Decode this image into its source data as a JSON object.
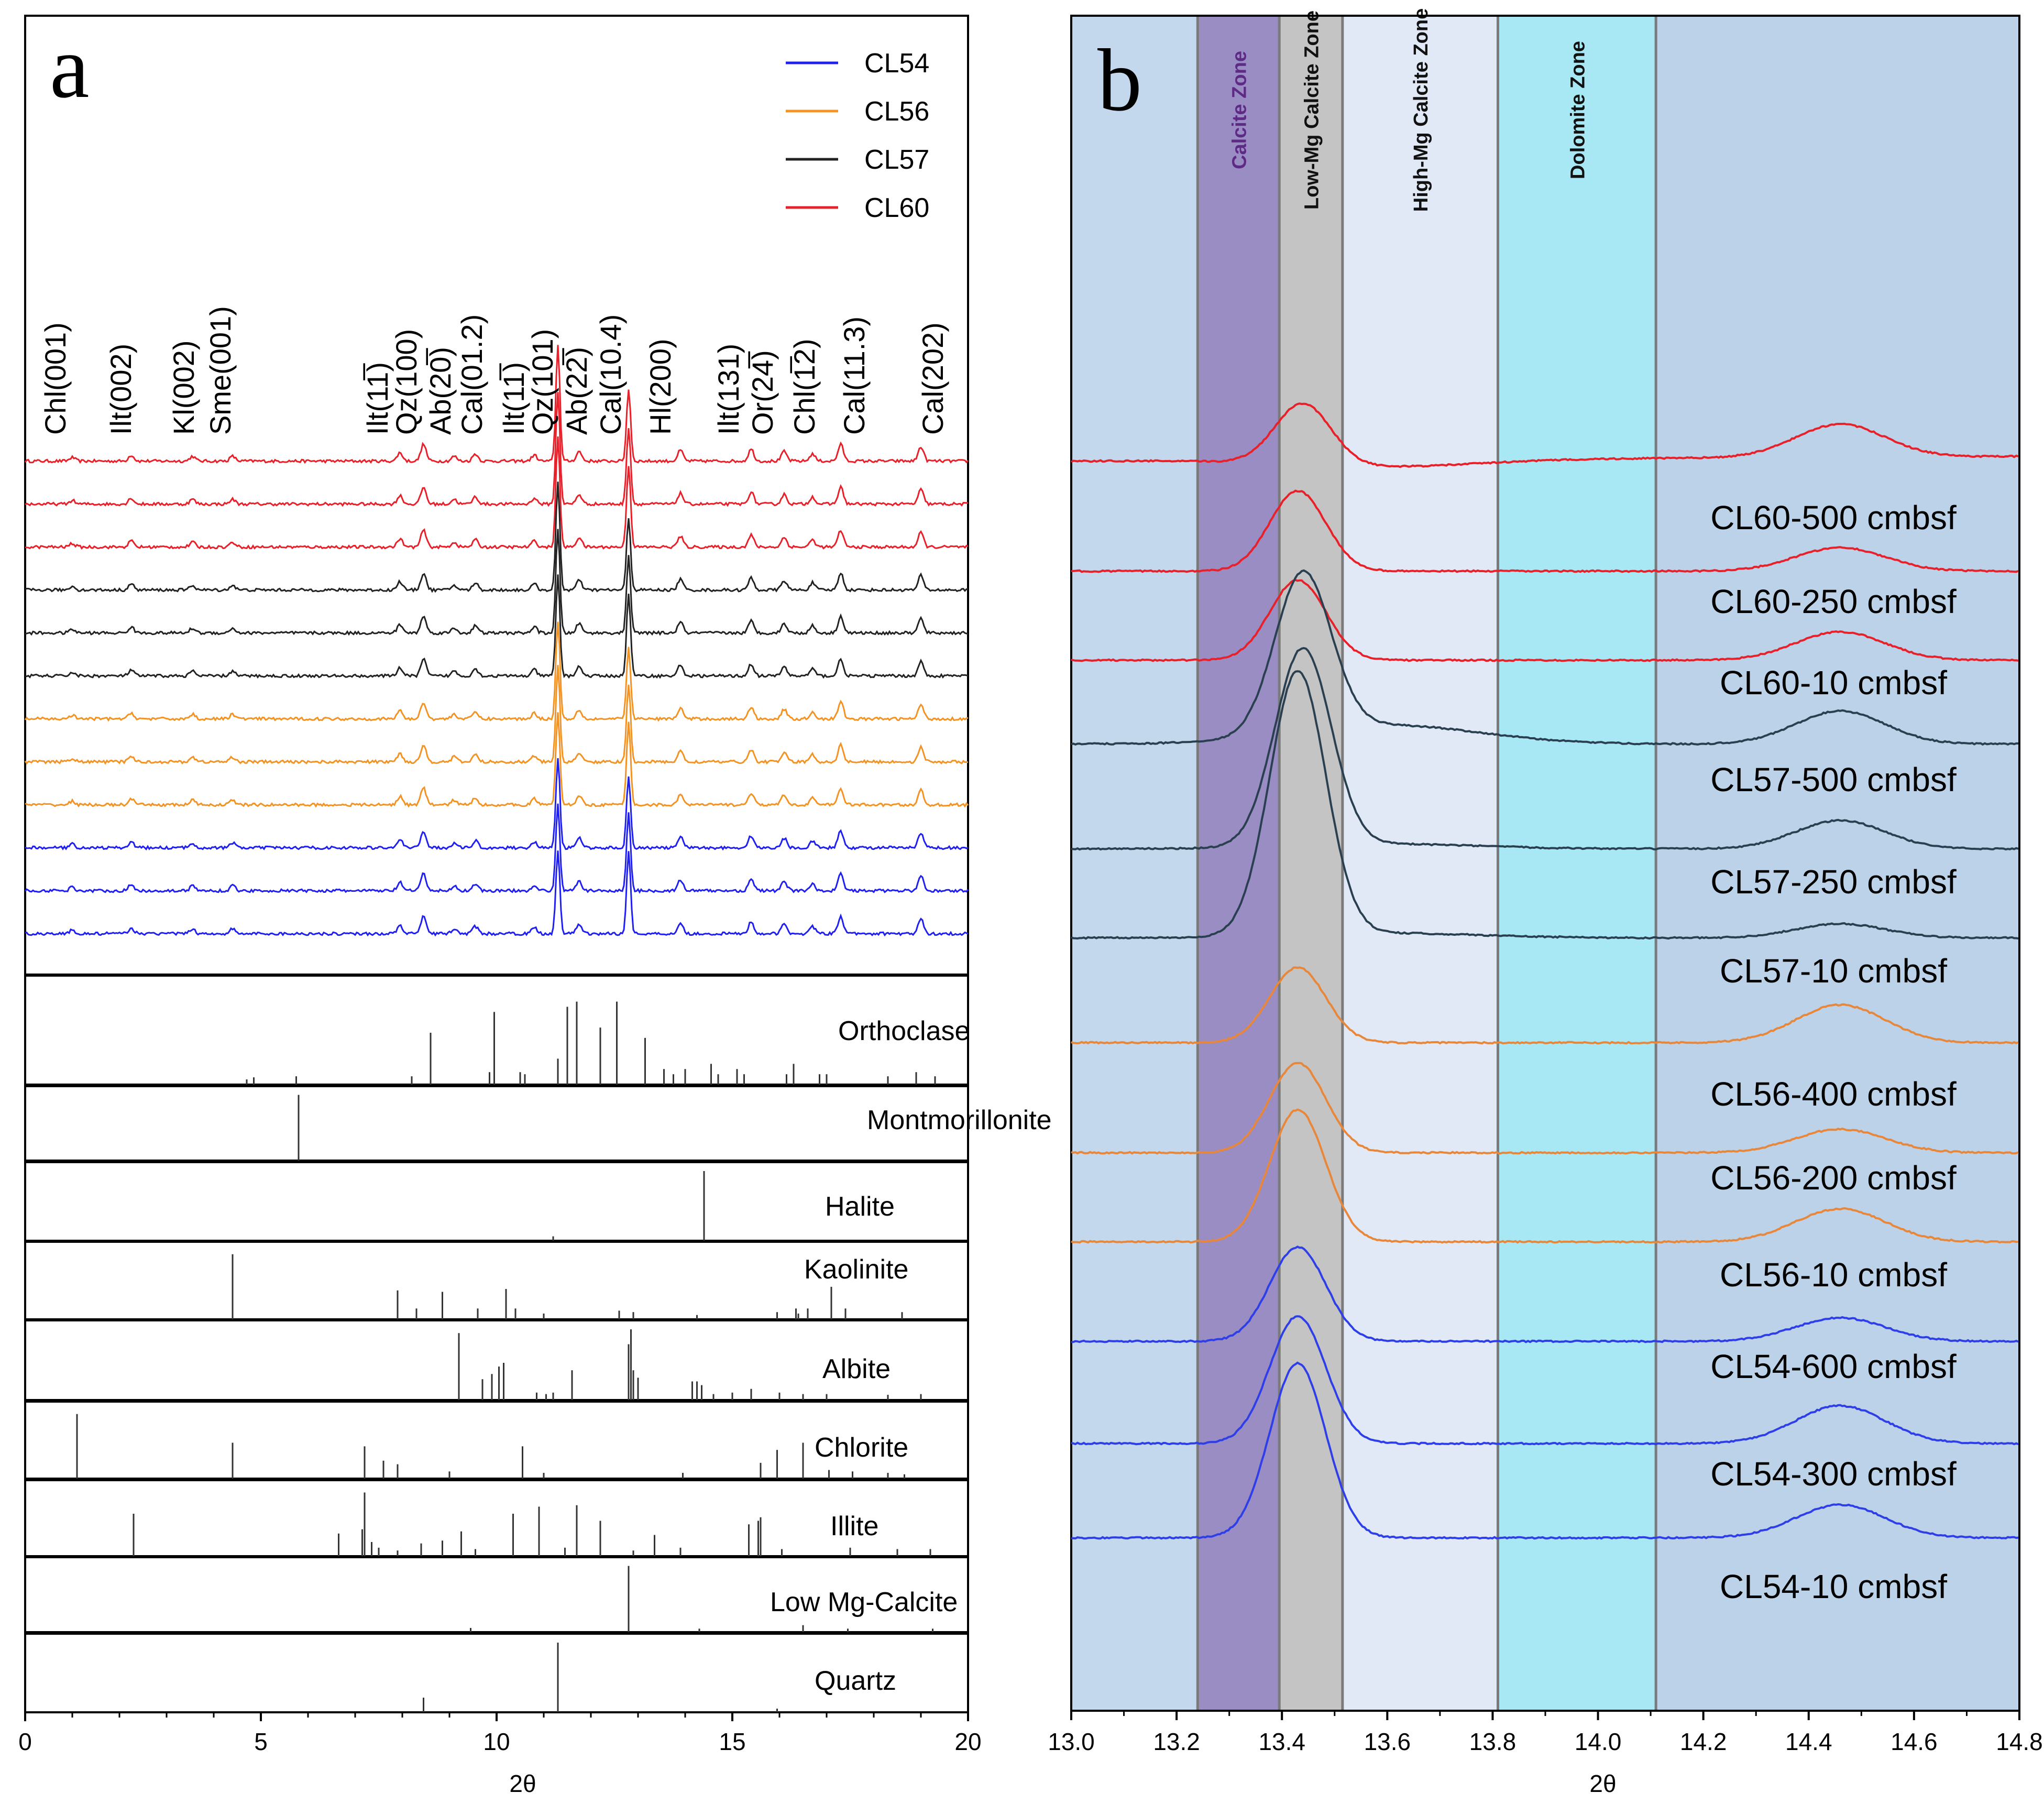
{
  "chart_data": [
    {
      "panel": "a",
      "type": "line",
      "xlabel": "2θ",
      "xlim": [
        0,
        20
      ],
      "xticks": [
        0,
        5,
        10,
        15,
        20
      ],
      "legend": {
        "position": "top-right",
        "entries": [
          {
            "name": "CL54",
            "color": "#1f1fef"
          },
          {
            "name": "CL56",
            "color": "#f39323"
          },
          {
            "name": "CL57",
            "color": "#222222"
          },
          {
            "name": "CL60",
            "color": "#e8202a"
          }
        ]
      },
      "series": [
        {
          "name": "CL60",
          "color": "#e8202a",
          "count": 3
        },
        {
          "name": "CL57",
          "color": "#222222",
          "count": 3
        },
        {
          "name": "CL56",
          "color": "#f39323",
          "count": 3
        },
        {
          "name": "CL54",
          "color": "#1f1fef",
          "count": 3
        }
      ],
      "peaks": [
        {
          "label": "Chl(001)",
          "x": 1.0,
          "h": 0.15
        },
        {
          "label": "Ilt(002)",
          "x": 2.25,
          "h": 0.25
        },
        {
          "label": "Kl(002)",
          "x": 3.55,
          "h": 0.2
        },
        {
          "label": "Sme(001)",
          "x": 4.4,
          "h": 0.2
        },
        {
          "label": "Ilt(11̅)",
          "x": 7.95,
          "h": 0.35
        },
        {
          "label": "Qz(100)",
          "x": 8.45,
          "h": 0.7
        },
        {
          "label": "Ab(20̅)",
          "x": 9.1,
          "h": 0.2
        },
        {
          "label": "Cal(01.2)",
          "x": 9.55,
          "h": 0.3
        },
        {
          "label": "Ilt(11̅)",
          "x": 10.8,
          "h": 0.25
        },
        {
          "label": "Qz(101)",
          "x": 11.3,
          "h": 4.8
        },
        {
          "label": "Ab(22̅)",
          "x": 11.75,
          "h": 0.4
        },
        {
          "label": "Cal(10.4)",
          "x": 12.8,
          "h": 3.2
        },
        {
          "label": "Hl(200)",
          "x": 13.9,
          "h": 0.45
        },
        {
          "label": "Ilt(131)",
          "x": 15.4,
          "h": 0.5
        },
        {
          "label": "Or(24̅)",
          "x": 16.1,
          "h": 0.4
        },
        {
          "label": "Chl(1̅2)",
          "x": 16.7,
          "h": 0.3
        },
        {
          "label": "Cal(11.3)",
          "x": 17.3,
          "h": 0.7
        },
        {
          "label": "Cal(202)",
          "x": 19.0,
          "h": 0.6
        }
      ],
      "references": [
        {
          "name": "Orthoclase",
          "sticks": [
            [
              4.7,
              0.05
            ],
            [
              4.85,
              0.07
            ],
            [
              5.75,
              0.08
            ],
            [
              8.2,
              0.08
            ],
            [
              8.6,
              0.5
            ],
            [
              9.85,
              0.12
            ],
            [
              9.95,
              0.7
            ],
            [
              10.5,
              0.12
            ],
            [
              10.6,
              0.1
            ],
            [
              11.3,
              0.25
            ],
            [
              11.5,
              0.75
            ],
            [
              11.7,
              0.8
            ],
            [
              12.2,
              0.55
            ],
            [
              12.55,
              0.8
            ],
            [
              13.15,
              0.45
            ],
            [
              13.55,
              0.15
            ],
            [
              13.75,
              0.1
            ],
            [
              14.0,
              0.15
            ],
            [
              14.55,
              0.2
            ],
            [
              14.7,
              0.1
            ],
            [
              15.1,
              0.15
            ],
            [
              15.25,
              0.1
            ],
            [
              16.15,
              0.1
            ],
            [
              16.3,
              0.2
            ],
            [
              16.85,
              0.1
            ],
            [
              17.0,
              0.1
            ],
            [
              18.3,
              0.08
            ],
            [
              18.9,
              0.12
            ],
            [
              19.3,
              0.08
            ]
          ]
        },
        {
          "name": "Montmorillonite",
          "sticks": [
            [
              5.8,
              0.95
            ]
          ]
        },
        {
          "name": "Halite",
          "sticks": [
            [
              14.4,
              0.95
            ],
            [
              11.2,
              0.06
            ]
          ]
        },
        {
          "name": "Kaolinite",
          "sticks": [
            [
              4.4,
              0.9
            ],
            [
              7.9,
              0.4
            ],
            [
              8.3,
              0.15
            ],
            [
              8.85,
              0.38
            ],
            [
              9.6,
              0.15
            ],
            [
              10.2,
              0.42
            ],
            [
              10.4,
              0.15
            ],
            [
              11.0,
              0.08
            ],
            [
              12.6,
              0.12
            ],
            [
              12.9,
              0.1
            ],
            [
              14.25,
              0.06
            ],
            [
              15.95,
              0.1
            ],
            [
              16.35,
              0.15
            ],
            [
              16.4,
              0.08
            ],
            [
              16.6,
              0.15
            ],
            [
              17.1,
              0.45
            ],
            [
              17.4,
              0.15
            ],
            [
              18.6,
              0.1
            ]
          ]
        },
        {
          "name": "Albite",
          "sticks": [
            [
              9.2,
              0.9
            ],
            [
              9.7,
              0.28
            ],
            [
              9.9,
              0.35
            ],
            [
              10.05,
              0.45
            ],
            [
              10.15,
              0.5
            ],
            [
              10.85,
              0.1
            ],
            [
              11.05,
              0.08
            ],
            [
              11.2,
              0.1
            ],
            [
              11.6,
              0.4
            ],
            [
              12.8,
              0.75
            ],
            [
              12.85,
              0.95
            ],
            [
              12.9,
              0.4
            ],
            [
              13.0,
              0.3
            ],
            [
              14.15,
              0.25
            ],
            [
              14.25,
              0.25
            ],
            [
              14.35,
              0.2
            ],
            [
              14.6,
              0.08
            ],
            [
              15.0,
              0.1
            ],
            [
              15.4,
              0.15
            ],
            [
              16.0,
              0.1
            ],
            [
              16.5,
              0.08
            ],
            [
              17.0,
              0.08
            ],
            [
              18.3,
              0.07
            ],
            [
              19.0,
              0.08
            ]
          ]
        },
        {
          "name": "Chlorite",
          "sticks": [
            [
              1.1,
              0.9
            ],
            [
              4.4,
              0.5
            ],
            [
              7.2,
              0.45
            ],
            [
              7.6,
              0.25
            ],
            [
              7.9,
              0.2
            ],
            [
              9.0,
              0.1
            ],
            [
              10.55,
              0.45
            ],
            [
              11.0,
              0.08
            ],
            [
              13.95,
              0.08
            ],
            [
              15.6,
              0.22
            ],
            [
              15.95,
              0.4
            ],
            [
              16.5,
              0.5
            ],
            [
              17.05,
              0.12
            ],
            [
              17.55,
              0.1
            ],
            [
              18.3,
              0.08
            ],
            [
              18.65,
              0.06
            ]
          ]
        },
        {
          "name": "Illite",
          "sticks": [
            [
              2.3,
              0.6
            ],
            [
              6.65,
              0.32
            ],
            [
              7.15,
              0.38
            ],
            [
              7.2,
              0.9
            ],
            [
              7.35,
              0.2
            ],
            [
              7.5,
              0.12
            ],
            [
              7.9,
              0.08
            ],
            [
              8.4,
              0.18
            ],
            [
              8.85,
              0.22
            ],
            [
              9.25,
              0.35
            ],
            [
              9.55,
              0.1
            ],
            [
              10.35,
              0.6
            ],
            [
              10.9,
              0.7
            ],
            [
              11.45,
              0.12
            ],
            [
              11.7,
              0.72
            ],
            [
              12.2,
              0.5
            ],
            [
              12.9,
              0.08
            ],
            [
              13.35,
              0.3
            ],
            [
              13.9,
              0.12
            ],
            [
              15.35,
              0.45
            ],
            [
              15.55,
              0.5
            ],
            [
              15.6,
              0.55
            ],
            [
              16.05,
              0.1
            ],
            [
              17.5,
              0.12
            ],
            [
              18.5,
              0.1
            ],
            [
              19.2,
              0.1
            ]
          ]
        },
        {
          "name": "Low Mg-Calcite",
          "sticks": [
            [
              12.8,
              0.95
            ],
            [
              9.45,
              0.06
            ],
            [
              14.3,
              0.05
            ],
            [
              16.5,
              0.1
            ],
            [
              17.45,
              0.05
            ],
            [
              19.25,
              0.05
            ]
          ]
        },
        {
          "name": "Quartz",
          "sticks": [
            [
              11.3,
              0.95
            ],
            [
              8.45,
              0.2
            ],
            [
              15.95,
              0.05
            ]
          ]
        }
      ]
    },
    {
      "panel": "b",
      "type": "line",
      "xlabel": "2θ",
      "xlim": [
        13.0,
        14.8
      ],
      "xticks": [
        "13.0",
        "13.2",
        "13.4",
        "13.6",
        "13.8",
        "14.0",
        "14.2",
        "14.4",
        "14.6",
        "14.8"
      ],
      "zones": [
        {
          "name": "",
          "x0": 13.0,
          "x1": 13.24,
          "color": "#c3d8ec"
        },
        {
          "name": "Calcite Zone",
          "x0": 13.24,
          "x1": 13.395,
          "color": "#9a8dc4",
          "label_color": "#5e2a86"
        },
        {
          "name": "Low-Mg Calcite Zone",
          "x0": 13.395,
          "x1": 13.515,
          "color": "#c4c4c4",
          "label_color": "#111111"
        },
        {
          "name": "High-Mg Calcite Zone",
          "x0": 13.515,
          "x1": 13.81,
          "color": "#e1e9f6",
          "label_color": "#111111"
        },
        {
          "name": "Dolomite Zone",
          "x0": 13.81,
          "x1": 14.11,
          "color": "#a8e8f5",
          "label_color": "#111111"
        },
        {
          "name": "",
          "x0": 14.11,
          "x1": 14.8,
          "color": "#bcd2e8"
        }
      ],
      "series": [
        {
          "name": "CL60-500 cmbsf",
          "color": "#e8202a",
          "peak_x": 13.44,
          "peak_h": 1.3,
          "baseline": [
            0.0,
            -0.15,
            0.1
          ],
          "peak2_h": 0.7
        },
        {
          "name": "CL60-250 cmbsf",
          "color": "#e8202a",
          "peak_x": 13.43,
          "peak_h": 1.7,
          "baseline": [
            0.0,
            0.0,
            0.0
          ],
          "peak2_h": 0.5
        },
        {
          "name": "CL60-10 cmbsf",
          "color": "#e8202a",
          "peak_x": 13.43,
          "peak_h": 1.7,
          "baseline": [
            0.0,
            0.0,
            0.0
          ],
          "peak2_h": 0.6
        },
        {
          "name": "CL57-500 cmbsf",
          "color": "#2a3f4f",
          "peak_x": 13.44,
          "peak_h": 3.4,
          "baseline": [
            0.0,
            0.4,
            0.0
          ],
          "peak2_h": 0.7
        },
        {
          "name": "CL57-250 cmbsf",
          "color": "#2a3f4f",
          "peak_x": 13.44,
          "peak_h": 4.2,
          "baseline": [
            0.0,
            0.1,
            0.0
          ],
          "peak2_h": 0.6
        },
        {
          "name": "CL57-10 cmbsf",
          "color": "#2a3f4f",
          "peak_x": 13.43,
          "peak_h": 5.6,
          "baseline": [
            0.0,
            0.1,
            0.0
          ],
          "peak2_h": 0.3
        },
        {
          "name": "CL56-400 cmbsf",
          "color": "#e8873a",
          "peak_x": 13.43,
          "peak_h": 1.6,
          "baseline": [
            0.0,
            0.0,
            0.0
          ],
          "peak2_h": 0.8
        },
        {
          "name": "CL56-200 cmbsf",
          "color": "#e8873a",
          "peak_x": 13.43,
          "peak_h": 1.9,
          "baseline": [
            0.0,
            0.0,
            0.0
          ],
          "peak2_h": 0.5
        },
        {
          "name": "CL56-10 cmbsf",
          "color": "#e8873a",
          "peak_x": 13.43,
          "peak_h": 2.8,
          "baseline": [
            0.0,
            0.0,
            0.0
          ],
          "peak2_h": 0.7
        },
        {
          "name": "CL54-600 cmbsf",
          "color": "#2e3ee8",
          "peak_x": 13.43,
          "peak_h": 2.0,
          "baseline": [
            0.0,
            0.0,
            0.0
          ],
          "peak2_h": 0.5
        },
        {
          "name": "CL54-300 cmbsf",
          "color": "#2e3ee8",
          "peak_x": 13.43,
          "peak_h": 2.7,
          "baseline": [
            0.0,
            0.0,
            0.0
          ],
          "peak2_h": 0.8
        },
        {
          "name": "CL54-10 cmbsf",
          "color": "#2e3ee8",
          "peak_x": 13.43,
          "peak_h": 3.7,
          "baseline": [
            0.0,
            0.0,
            0.0
          ],
          "peak2_h": 0.7
        }
      ]
    }
  ],
  "labels": {
    "panel_a": "a",
    "panel_b": "b"
  }
}
